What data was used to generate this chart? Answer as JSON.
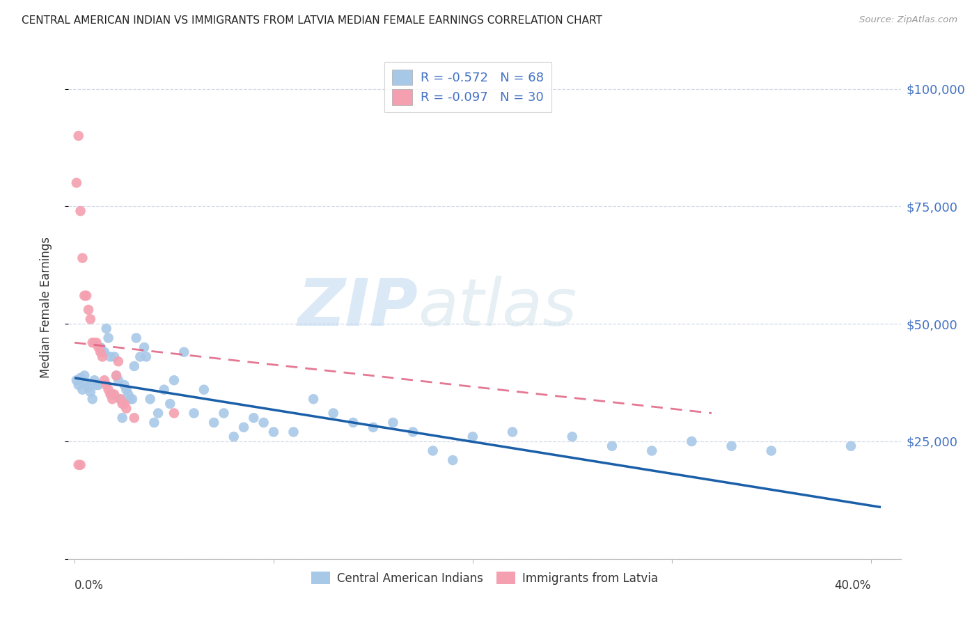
{
  "title": "CENTRAL AMERICAN INDIAN VS IMMIGRANTS FROM LATVIA MEDIAN FEMALE EARNINGS CORRELATION CHART",
  "source": "Source: ZipAtlas.com",
  "ylabel": "Median Female Earnings",
  "watermark_zip": "ZIP",
  "watermark_atlas": "atlas",
  "legend_blue_R": "-0.572",
  "legend_blue_N": "68",
  "legend_pink_R": "-0.097",
  "legend_pink_N": "30",
  "legend_label_blue": "Central American Indians",
  "legend_label_pink": "Immigrants from Latvia",
  "yticks": [
    0,
    25000,
    50000,
    75000,
    100000
  ],
  "ytick_labels": [
    "",
    "$25,000",
    "$50,000",
    "$75,000",
    "$100,000"
  ],
  "blue_color": "#a8c8e8",
  "pink_color": "#f4a0b0",
  "blue_line_color": "#1a5fa8",
  "pink_line_color": "#e06080",
  "axis_color": "#4472c4",
  "text_color": "#333333",
  "grid_color": "#d0d8e8",
  "background_color": "#ffffff",
  "blue_dots": [
    [
      0.001,
      38000
    ],
    [
      0.002,
      37000
    ],
    [
      0.003,
      38500
    ],
    [
      0.004,
      36000
    ],
    [
      0.005,
      39000
    ],
    [
      0.006,
      37500
    ],
    [
      0.007,
      36500
    ],
    [
      0.008,
      35500
    ],
    [
      0.009,
      34000
    ],
    [
      0.01,
      38000
    ],
    [
      0.011,
      37000
    ],
    [
      0.012,
      37000
    ],
    [
      0.013,
      45000
    ],
    [
      0.014,
      44000
    ],
    [
      0.015,
      44000
    ],
    [
      0.016,
      49000
    ],
    [
      0.017,
      47000
    ],
    [
      0.018,
      43000
    ],
    [
      0.019,
      35000
    ],
    [
      0.02,
      43000
    ],
    [
      0.021,
      39000
    ],
    [
      0.022,
      38000
    ],
    [
      0.023,
      34000
    ],
    [
      0.024,
      30000
    ],
    [
      0.025,
      37000
    ],
    [
      0.026,
      36000
    ],
    [
      0.027,
      35000
    ],
    [
      0.028,
      34000
    ],
    [
      0.029,
      34000
    ],
    [
      0.03,
      41000
    ],
    [
      0.031,
      47000
    ],
    [
      0.033,
      43000
    ],
    [
      0.035,
      45000
    ],
    [
      0.036,
      43000
    ],
    [
      0.038,
      34000
    ],
    [
      0.04,
      29000
    ],
    [
      0.042,
      31000
    ],
    [
      0.045,
      36000
    ],
    [
      0.048,
      33000
    ],
    [
      0.05,
      38000
    ],
    [
      0.055,
      44000
    ],
    [
      0.06,
      31000
    ],
    [
      0.065,
      36000
    ],
    [
      0.07,
      29000
    ],
    [
      0.075,
      31000
    ],
    [
      0.08,
      26000
    ],
    [
      0.085,
      28000
    ],
    [
      0.09,
      30000
    ],
    [
      0.095,
      29000
    ],
    [
      0.1,
      27000
    ],
    [
      0.11,
      27000
    ],
    [
      0.12,
      34000
    ],
    [
      0.13,
      31000
    ],
    [
      0.14,
      29000
    ],
    [
      0.15,
      28000
    ],
    [
      0.16,
      29000
    ],
    [
      0.17,
      27000
    ],
    [
      0.18,
      23000
    ],
    [
      0.19,
      21000
    ],
    [
      0.2,
      26000
    ],
    [
      0.22,
      27000
    ],
    [
      0.25,
      26000
    ],
    [
      0.27,
      24000
    ],
    [
      0.29,
      23000
    ],
    [
      0.31,
      25000
    ],
    [
      0.33,
      24000
    ],
    [
      0.35,
      23000
    ],
    [
      0.39,
      24000
    ]
  ],
  "pink_dots": [
    [
      0.001,
      80000
    ],
    [
      0.002,
      90000
    ],
    [
      0.003,
      74000
    ],
    [
      0.004,
      64000
    ],
    [
      0.005,
      56000
    ],
    [
      0.006,
      56000
    ],
    [
      0.007,
      53000
    ],
    [
      0.008,
      51000
    ],
    [
      0.009,
      46000
    ],
    [
      0.01,
      46000
    ],
    [
      0.011,
      46000
    ],
    [
      0.012,
      45000
    ],
    [
      0.013,
      44000
    ],
    [
      0.014,
      43000
    ],
    [
      0.015,
      38000
    ],
    [
      0.016,
      37000
    ],
    [
      0.017,
      36000
    ],
    [
      0.018,
      35000
    ],
    [
      0.019,
      34000
    ],
    [
      0.02,
      35000
    ],
    [
      0.021,
      39000
    ],
    [
      0.022,
      42000
    ],
    [
      0.023,
      34000
    ],
    [
      0.024,
      33000
    ],
    [
      0.025,
      33000
    ],
    [
      0.026,
      32000
    ],
    [
      0.03,
      30000
    ],
    [
      0.05,
      31000
    ],
    [
      0.002,
      20000
    ],
    [
      0.003,
      20000
    ]
  ],
  "xmin": -0.003,
  "xmax": 0.415,
  "ymin": 0,
  "ymax": 107000,
  "blue_line_x": [
    0.0,
    0.405
  ],
  "blue_line_y": [
    38500,
    11000
  ],
  "pink_line_x": [
    0.0,
    0.32
  ],
  "pink_line_y": [
    46000,
    31000
  ]
}
